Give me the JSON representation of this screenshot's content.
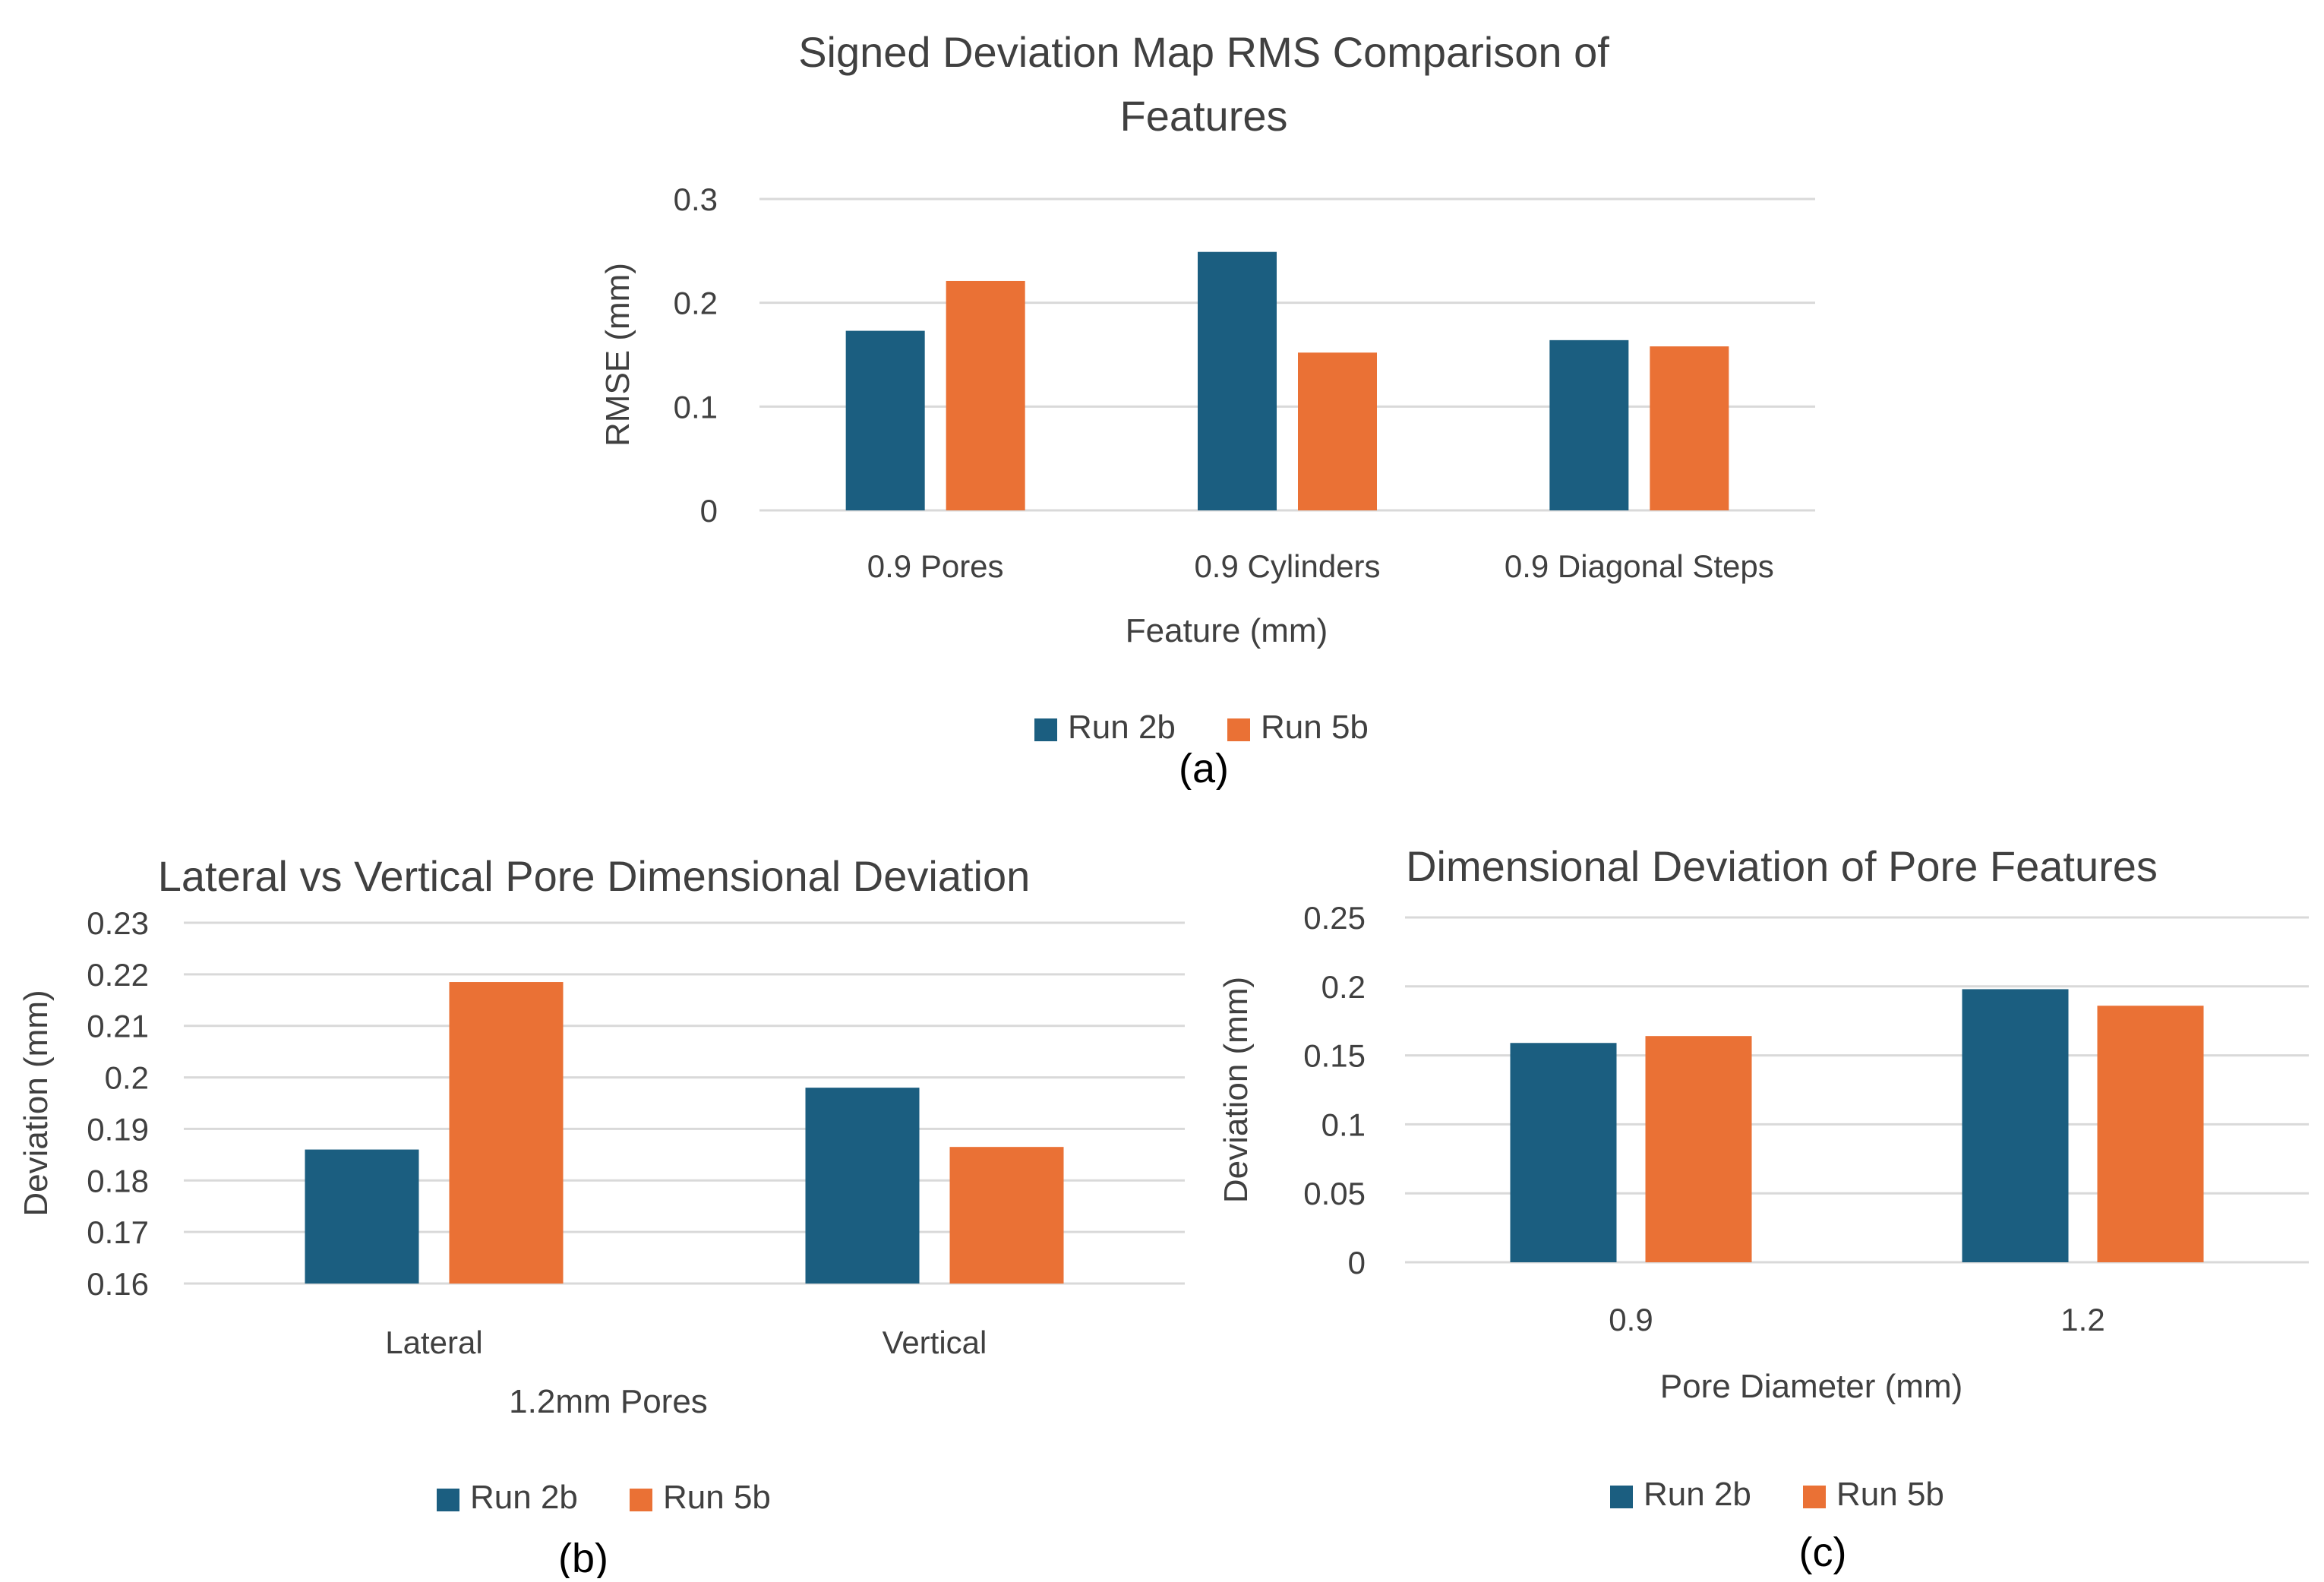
{
  "colors": {
    "run2b": "#1b5e80",
    "run5b": "#ea7135",
    "grid": "#d9d9d9",
    "text": "#404040"
  },
  "legend": {
    "series_a": "Run 2b",
    "series_b": "Run 5b"
  },
  "chart_data": [
    {
      "id": "a",
      "type": "bar",
      "caption": "(a)",
      "title_lines": [
        "Signed Deviation Map RMS Comparison of",
        "Features"
      ],
      "xlabel": "Feature (mm)",
      "ylabel": "RMSE (mm)",
      "categories": [
        "0.9 Pores",
        "0.9 Cylinders",
        "0.9 Diagonal Steps"
      ],
      "series": [
        {
          "name": "Run 2b",
          "values": [
            0.173,
            0.249,
            0.164
          ]
        },
        {
          "name": "Run 5b",
          "values": [
            0.221,
            0.152,
            0.158
          ]
        }
      ],
      "ylim": [
        0,
        0.3
      ],
      "yticks": [
        "0",
        "0.1",
        "0.2",
        "0.3"
      ],
      "grid": true,
      "legend_position": "bottom"
    },
    {
      "id": "b",
      "type": "bar",
      "caption": "(b)",
      "title_lines": [
        "Lateral vs Vertical Pore Dimensional Deviation"
      ],
      "xlabel": "1.2mm Pores",
      "ylabel": "Deviation (mm)",
      "categories": [
        "Lateral",
        "Vertical"
      ],
      "series": [
        {
          "name": "Run 2b",
          "values": [
            0.186,
            0.198
          ]
        },
        {
          "name": "Run 5b",
          "values": [
            0.2185,
            0.1865
          ]
        }
      ],
      "ylim": [
        0.16,
        0.23
      ],
      "yticks": [
        "0.16",
        "0.17",
        "0.18",
        "0.19",
        "0.2",
        "0.21",
        "0.22",
        "0.23"
      ],
      "grid": true,
      "legend_position": "bottom"
    },
    {
      "id": "c",
      "type": "bar",
      "caption": "(c)",
      "title_lines": [
        "Dimensional Deviation of Pore Features"
      ],
      "xlabel": "Pore Diameter (mm)",
      "ylabel": "Deviation (mm)",
      "categories": [
        "0.9",
        "1.2"
      ],
      "series": [
        {
          "name": "Run 2b",
          "values": [
            0.159,
            0.198
          ]
        },
        {
          "name": "Run 5b",
          "values": [
            0.164,
            0.186
          ]
        }
      ],
      "ylim": [
        0,
        0.25
      ],
      "yticks": [
        "0",
        "0.05",
        "0.1",
        "0.15",
        "0.2",
        "0.25"
      ],
      "grid": true,
      "legend_position": "bottom"
    }
  ]
}
